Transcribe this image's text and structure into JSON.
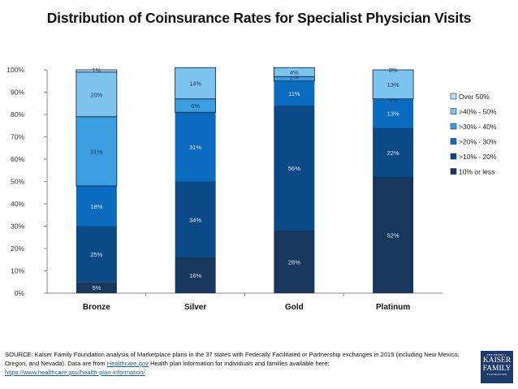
{
  "chart_data": {
    "type": "bar",
    "stacked": true,
    "title": "Distribution of Coinsurance Rates for Specialist Physician Visits",
    "xlabel": "",
    "ylabel": "",
    "ylim": [
      0,
      100
    ],
    "y_ticks": [
      "0%",
      "10%",
      "20%",
      "30%",
      "40%",
      "50%",
      "60%",
      "70%",
      "80%",
      "90%",
      "100%"
    ],
    "grid": false,
    "legend_position": "right",
    "categories": [
      "Bronze",
      "Silver",
      "Gold",
      "Platinum"
    ],
    "series": [
      {
        "name": "10% or less",
        "color": "#17375e",
        "label_color": "#dce6f2",
        "values": [
          5,
          16,
          28,
          52
        ],
        "labels": [
          "5%",
          "16%",
          "28%",
          "52%"
        ]
      },
      {
        "name": ">10% - 20%",
        "color": "#0b4a86",
        "label_color": "#dce6f2",
        "values": [
          25,
          34,
          56,
          22
        ],
        "labels": [
          "25%",
          "34%",
          "56%",
          "22%"
        ]
      },
      {
        "name": ">20% - 30%",
        "color": "#0b6cbf",
        "label_color": "#dce6f2",
        "values": [
          18,
          31,
          11,
          13
        ],
        "labels": [
          "18%",
          "31%",
          "11%",
          "13%"
        ]
      },
      {
        "name": ">30% - 40%",
        "color": "#3a9ee0",
        "label_color": "#17375e",
        "values": [
          31,
          6,
          2,
          0
        ],
        "labels": [
          "31%",
          "6%",
          "2%",
          "0%"
        ]
      },
      {
        "name": ">40% - 50%",
        "color": "#7cc4ee",
        "label_color": "#17375e",
        "values": [
          20,
          14,
          4,
          13
        ],
        "labels": [
          "20%",
          "14%",
          "4%",
          "13%"
        ]
      },
      {
        "name": "Over 50%",
        "color": "#b9dcf4",
        "label_color": "#17375e",
        "values": [
          1,
          0,
          0,
          0
        ],
        "labels": [
          "1%",
          "",
          "",
          "0%"
        ]
      }
    ]
  },
  "footer": {
    "source_text_1": "SOURCE: Kaiser Family Foundation analysis of Marketplace plans in the 37 states with Federally Facilitated or Partnership exchanges in 2015 (including New Mexico, Oregon, and Nevada). Data are from ",
    "link_1": "Healthcare.gov",
    "source_text_2": " Health plan information for individuals and families available here:",
    "link_2": "https://www.healthcare.gov/health-plan-information/"
  },
  "logo": {
    "line1": "THE HENRY J.",
    "line2": "KAISER",
    "line3": "FAMILY",
    "line4": "FOUNDATION"
  }
}
